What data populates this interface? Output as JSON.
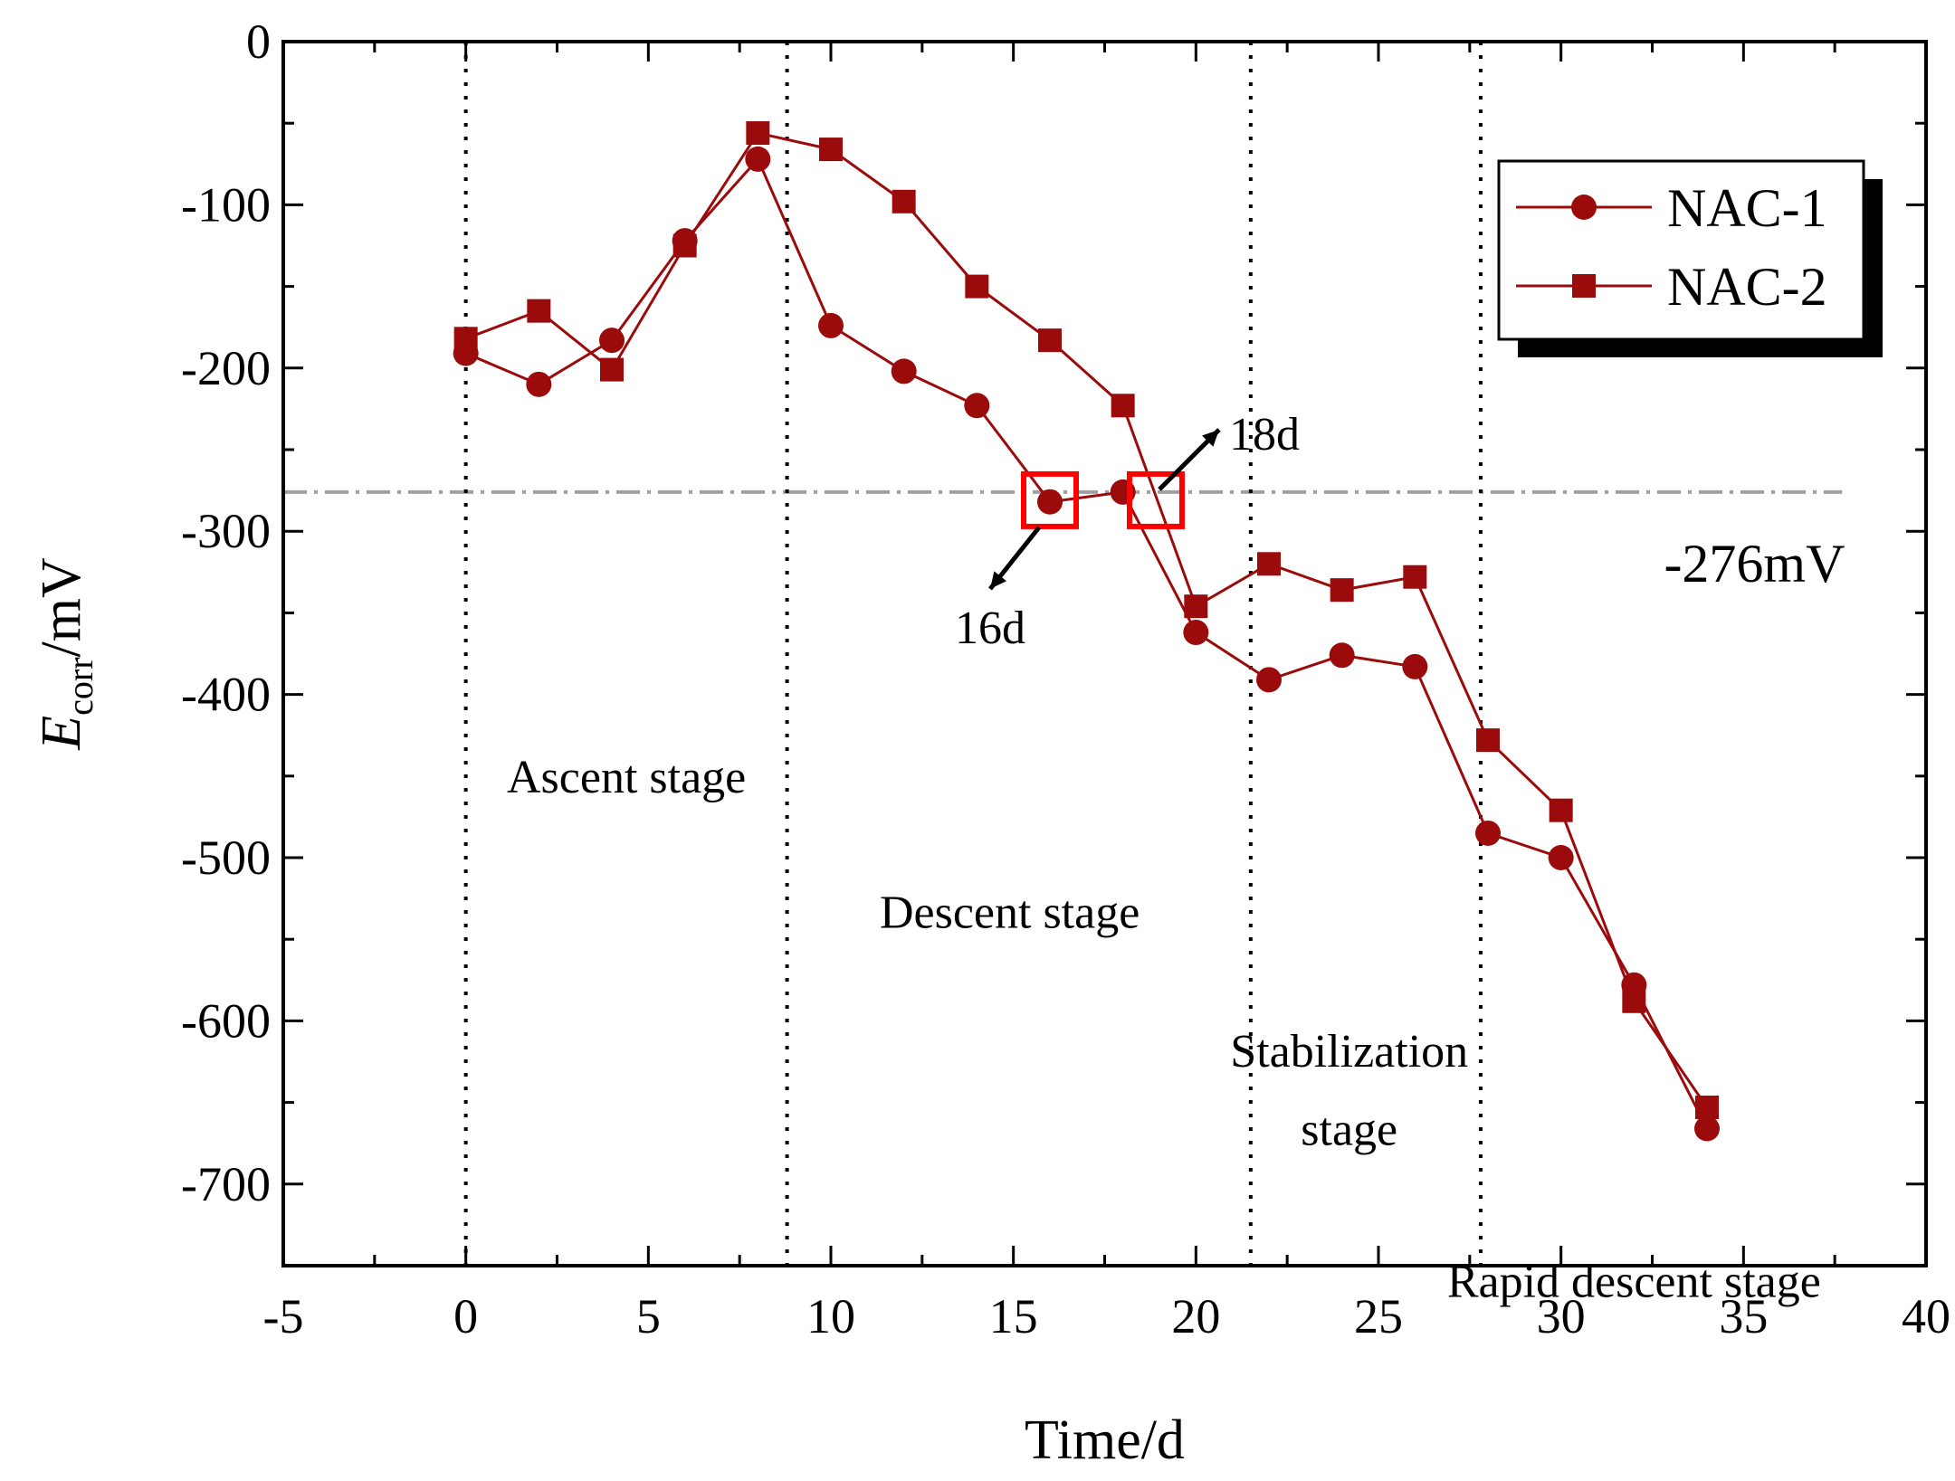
{
  "chart_data": {
    "type": "line",
    "xlabel": "Time/d",
    "ylabel_main": "E",
    "ylabel_sub": "corr",
    "ylabel_unit": "/mV",
    "xlim": [
      -5,
      40
    ],
    "ylim": [
      -750,
      0
    ],
    "xticks": [
      -5,
      0,
      5,
      10,
      15,
      20,
      25,
      30,
      35,
      40
    ],
    "xtick_labels": [
      "-5",
      "0",
      "5",
      "10",
      "15",
      "20",
      "25",
      "30",
      "35",
      "40"
    ],
    "yticks": [
      0,
      -100,
      -200,
      -300,
      -400,
      -500,
      -600,
      -700
    ],
    "ytick_labels": [
      "0",
      "-100",
      "-200",
      "-300",
      "-400",
      "-500",
      "-600",
      "-700"
    ],
    "line_color": "#9b0b0b",
    "x": [
      0,
      2,
      4,
      6,
      8,
      10,
      12,
      14,
      16,
      18,
      20,
      22,
      24,
      26,
      28,
      30,
      32,
      34
    ],
    "series": [
      {
        "name": "NAC-1",
        "marker": "circle",
        "values": [
          -191,
          -210,
          -183,
          -122,
          -72,
          -174,
          -202,
          -223,
          -282,
          -276,
          -362,
          -391,
          -376,
          -383,
          -485,
          -500,
          -578,
          -666
        ]
      },
      {
        "name": "NAC-2",
        "marker": "square",
        "values": [
          -182,
          -165,
          -201,
          -125,
          -56,
          -66,
          -98,
          -150,
          -183,
          -223,
          -346,
          -320,
          -336,
          -328,
          -428,
          -471,
          -588,
          -653
        ]
      }
    ],
    "threshold": {
      "value": -276,
      "label": "-276mV",
      "color": "#a0a0a0"
    },
    "stage_dividers": [
      0,
      8.8,
      21.5,
      27.8
    ],
    "stages": [
      {
        "label": "Ascent stage"
      },
      {
        "label": "Descent stage"
      },
      {
        "label": "Stabilization"
      },
      {
        "label": "stage"
      },
      {
        "label": "Rapid descent stage"
      }
    ],
    "highlights": [
      {
        "x": 16,
        "y": -281,
        "label": "16d",
        "color": "#ff0000"
      },
      {
        "x": 18.9,
        "y": -281,
        "label": "18d",
        "color": "#ff0000"
      }
    ]
  }
}
